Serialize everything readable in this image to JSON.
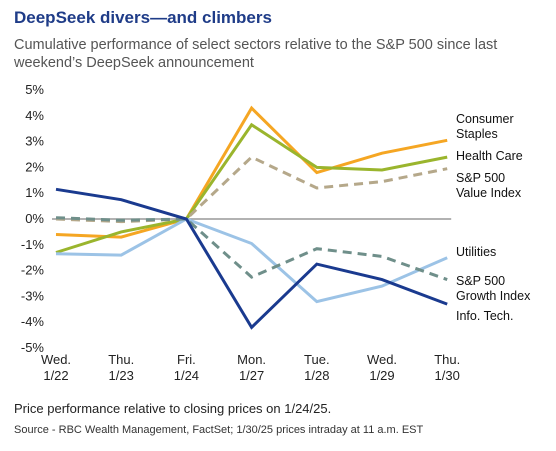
{
  "title": "DeepSeek divers—and climbers",
  "subtitle": "Cumulative performance of select sectors relative to the S&P 500 since last weekend’s DeepSeek announcement",
  "note": "Price performance relative to closing prices on 1/24/25.",
  "source": "Source - RBC Wealth Management, FactSet; 1/30/25 prices intraday at 11 a.m. EST",
  "chart_data": {
    "type": "line",
    "x": [
      [
        "Wed.",
        "1/22"
      ],
      [
        "Thu.",
        "1/23"
      ],
      [
        "Fri.",
        "1/24"
      ],
      [
        "Mon.",
        "1/27"
      ],
      [
        "Tue.",
        "1/28"
      ],
      [
        "Wed.",
        "1/29"
      ],
      [
        "Thu.",
        "1/30"
      ]
    ],
    "ylim": [
      -5,
      5
    ],
    "yticks": [
      5,
      4,
      3,
      2,
      1,
      0,
      -1,
      -2,
      -3,
      -4,
      -5
    ],
    "ytick_labels": [
      "5%",
      "4%",
      "3%",
      "2%",
      "1%",
      "0%",
      "-1%",
      "-2%",
      "-3%",
      "-4%",
      "-5%"
    ],
    "series": [
      {
        "name": "Consumer Staples",
        "label_lines": [
          "Consumer",
          "Staples"
        ],
        "color": "#f5a623",
        "dash": "solid",
        "values": [
          -0.6,
          -0.7,
          0.0,
          4.3,
          1.8,
          2.55,
          3.05
        ]
      },
      {
        "name": "Health Care",
        "label_lines": [
          "Health Care"
        ],
        "color": "#9ab52d",
        "dash": "solid",
        "values": [
          -1.3,
          -0.5,
          0.0,
          3.65,
          2.0,
          1.9,
          2.4
        ]
      },
      {
        "name": "S&P 500 Value Index",
        "label_lines": [
          "S&P 500",
          "Value Index"
        ],
        "color": "#b5a88a",
        "dash": "dashed",
        "values": [
          0.0,
          -0.1,
          0.0,
          2.4,
          1.2,
          1.45,
          1.95
        ]
      },
      {
        "name": "Utilities",
        "label_lines": [
          "Utilities"
        ],
        "color": "#9cc3e6",
        "dash": "solid",
        "values": [
          -1.35,
          -1.4,
          0.0,
          -0.95,
          -3.2,
          -2.6,
          -1.5
        ]
      },
      {
        "name": "S&P 500 Growth Index",
        "label_lines": [
          "S&P 500",
          "Growth Index"
        ],
        "color": "#6f8f8a",
        "dash": "dashed",
        "values": [
          0.05,
          -0.05,
          0.0,
          -2.25,
          -1.15,
          -1.45,
          -2.35
        ]
      },
      {
        "name": "Info. Tech.",
        "label_lines": [
          "Info. Tech."
        ],
        "color": "#1a3a8f",
        "dash": "solid",
        "values": [
          1.15,
          0.75,
          0.0,
          -4.2,
          -1.75,
          -2.35,
          -3.3
        ]
      }
    ]
  }
}
